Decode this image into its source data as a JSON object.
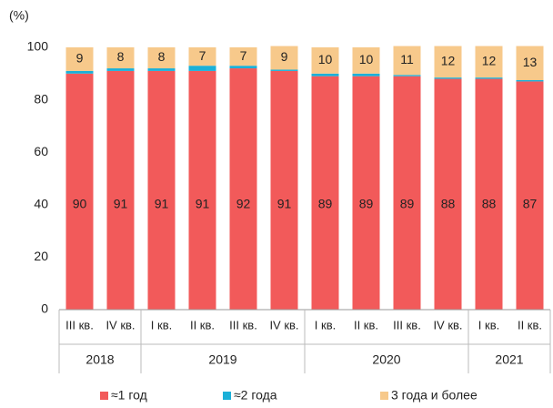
{
  "chart_data": {
    "type": "stacked-bar",
    "y_axis_label": "(%)",
    "categories": [
      "III кв.",
      "IV кв.",
      "I кв.",
      "II кв.",
      "III кв.",
      "IV кв.",
      "I кв.",
      "II кв.",
      "III кв.",
      "IV кв.",
      "I кв.",
      "II кв."
    ],
    "x_groups": [
      {
        "label": "2018",
        "count": 2
      },
      {
        "label": "2019",
        "count": 4
      },
      {
        "label": "2020",
        "count": 4
      },
      {
        "label": "2021",
        "count": 2
      }
    ],
    "series": [
      {
        "name": "≈1 год",
        "color": "#f25a5a",
        "values": [
          90,
          91,
          91,
          91,
          92,
          91,
          89,
          89,
          89,
          88,
          88,
          87
        ],
        "labels": true
      },
      {
        "name": "≈2 года",
        "color": "#1bb0d8",
        "values": [
          1,
          1,
          1,
          2,
          1,
          0.5,
          1,
          1,
          0.5,
          0.5,
          0.5,
          0.5
        ],
        "labels": false
      },
      {
        "name": "3 года и более",
        "color": "#f7c98b",
        "values": [
          9,
          8,
          8,
          7,
          7,
          9,
          10,
          10,
          11,
          12,
          12,
          13
        ],
        "labels": true
      }
    ],
    "ylim": [
      0,
      100
    ],
    "yticks": [
      0,
      20,
      40,
      60,
      80,
      100
    ],
    "grid": false,
    "legend": "bottom"
  }
}
